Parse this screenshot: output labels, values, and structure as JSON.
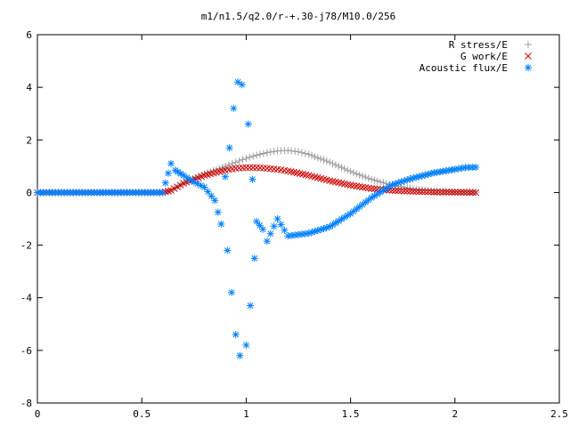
{
  "chart_data": {
    "type": "scatter",
    "title": "m1/n1.5/q2.0/r-+.30-j78/M10.0/256",
    "xlabel": "",
    "ylabel": "",
    "xlim": [
      0,
      2.5
    ],
    "ylim": [
      -8,
      6
    ],
    "xticks": [
      {
        "value": 0,
        "label": "0"
      },
      {
        "value": 0.5,
        "label": "0.5"
      },
      {
        "value": 1,
        "label": "1"
      },
      {
        "value": 1.5,
        "label": "1.5"
      },
      {
        "value": 2,
        "label": "2"
      },
      {
        "value": 2.5,
        "label": "2.5"
      }
    ],
    "yticks": [
      {
        "value": -8,
        "label": "-8"
      },
      {
        "value": -6,
        "label": "-6"
      },
      {
        "value": -4,
        "label": "-4"
      },
      {
        "value": -2,
        "label": "-2"
      },
      {
        "value": 0,
        "label": "0"
      },
      {
        "value": 2,
        "label": "2"
      },
      {
        "value": 4,
        "label": "4"
      },
      {
        "value": 6,
        "label": "6"
      }
    ],
    "grid": false,
    "legend_position": "top-right",
    "series": [
      {
        "name": "R stress/E",
        "marker": "plus",
        "color": "#a0a0a0",
        "x": [
          0.0,
          0.1,
          0.2,
          0.3,
          0.4,
          0.5,
          0.6,
          0.64,
          0.7,
          0.8,
          0.9,
          0.95,
          1.0,
          1.05,
          1.1,
          1.15,
          1.2,
          1.25,
          1.3,
          1.4,
          1.5,
          1.6,
          1.7,
          1.8,
          1.9,
          2.0,
          2.1
        ],
        "y": [
          0.0,
          0.0,
          0.0,
          0.0,
          0.0,
          0.0,
          0.0,
          0.08,
          0.35,
          0.7,
          1.0,
          1.15,
          1.3,
          1.42,
          1.52,
          1.58,
          1.6,
          1.55,
          1.45,
          1.15,
          0.8,
          0.5,
          0.28,
          0.14,
          0.06,
          0.02,
          0.01
        ]
      },
      {
        "name": "G work/E",
        "marker": "cross",
        "color": "#cc0000",
        "x": [
          0.0,
          0.1,
          0.2,
          0.3,
          0.4,
          0.5,
          0.6,
          0.64,
          0.7,
          0.8,
          0.9,
          0.95,
          1.0,
          1.05,
          1.1,
          1.15,
          1.2,
          1.3,
          1.4,
          1.5,
          1.6,
          1.7,
          1.8,
          1.9,
          2.0,
          2.1
        ],
        "y": [
          0.0,
          0.0,
          0.0,
          0.0,
          0.0,
          0.0,
          0.0,
          0.08,
          0.35,
          0.65,
          0.85,
          0.92,
          0.95,
          0.95,
          0.92,
          0.88,
          0.82,
          0.65,
          0.45,
          0.28,
          0.15,
          0.08,
          0.04,
          0.02,
          0.01,
          0.0
        ]
      },
      {
        "name": "Acoustic flux/E",
        "marker": "star",
        "color": "#0080ff",
        "x": [
          0.0,
          0.1,
          0.2,
          0.3,
          0.4,
          0.5,
          0.6,
          0.64,
          0.66,
          0.7,
          0.75,
          0.8,
          0.85,
          0.88,
          0.9,
          0.91,
          0.92,
          0.93,
          0.94,
          0.95,
          0.96,
          0.97,
          0.98,
          1.0,
          1.01,
          1.02,
          1.03,
          1.04,
          1.05,
          1.08,
          1.1,
          1.15,
          1.2,
          1.25,
          1.3,
          1.4,
          1.5,
          1.6,
          1.7,
          1.8,
          1.9,
          2.0,
          2.05,
          2.1
        ],
        "y": [
          0.0,
          0.0,
          0.0,
          0.0,
          0.0,
          0.0,
          0.0,
          1.1,
          0.85,
          0.65,
          0.4,
          0.2,
          -0.3,
          -1.2,
          0.6,
          -2.2,
          1.7,
          -3.8,
          3.2,
          -5.4,
          4.2,
          -6.2,
          4.1,
          -5.8,
          2.6,
          -4.3,
          0.5,
          -2.5,
          -1.1,
          -1.4,
          -1.85,
          -1.0,
          -1.65,
          -1.6,
          -1.55,
          -1.3,
          -0.8,
          -0.2,
          0.3,
          0.55,
          0.75,
          0.88,
          0.95,
          0.96
        ]
      }
    ]
  }
}
